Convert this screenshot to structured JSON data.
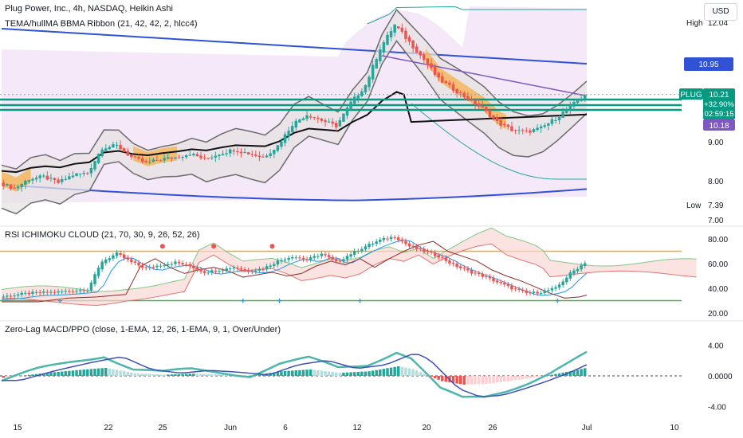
{
  "header": {
    "title": "Plug Power, Inc., 4h, NASDAQ, Heikin Ashi",
    "indicator1": "TEMA/hullMA BBMA Ribbon (21, 42, 42, 2, hlcc4)",
    "indicator2": "RSI ICHIMOKU CLOUD (21, 70, 30, 9, 26, 52, 26)",
    "indicator3": "Zero-Lag MACD/PPO (close, 1-EMA, 12, 26, 1-EMA, 9, 1, Over/Under)"
  },
  "currency_button": "USD",
  "price_axis": {
    "ticks": [
      "9.00",
      "8.00",
      "7.00"
    ],
    "high_label": "High",
    "high_value": "12.04",
    "low_label": "Low",
    "low_value": "7.39",
    "blue_band_value": "10.95",
    "ticker": "PLUG",
    "last_price": "10.21",
    "change": "+32.90%",
    "countdown": "02:59:15",
    "ma_value": "10.18"
  },
  "rsi_axis": {
    "ticks": [
      "80.00",
      "60.00",
      "40.00",
      "20.00"
    ]
  },
  "macd_axis": {
    "ticks": [
      "4.00",
      "0.0000",
      "-4.00"
    ]
  },
  "time_axis": {
    "labels": [
      "15",
      "22",
      "25",
      "Jun",
      "6",
      "12",
      "20",
      "26",
      "Jul",
      "10"
    ]
  },
  "colors": {
    "up": "#26a69a",
    "down": "#ef5350",
    "blue": "#3152d4",
    "teal": "#089981",
    "purple": "#7e57c2"
  },
  "chart_data": [
    {
      "type": "candlestick",
      "title": "Plug Power, Inc., 4h, NASDAQ, Heikin Ashi",
      "x_labels": [
        "15",
        "22",
        "25",
        "Jun",
        "6",
        "12",
        "20",
        "26",
        "Jul",
        "10"
      ],
      "y_ticks": [
        9.0,
        8.0,
        7.0
      ],
      "ylim": [
        6.9,
        12.4
      ],
      "close_path": [
        [
          0,
          7.95
        ],
        [
          4,
          7.8
        ],
        [
          8,
          8.05
        ],
        [
          12,
          8.1
        ],
        [
          16,
          7.95
        ],
        [
          20,
          8.15
        ],
        [
          24,
          8.2
        ],
        [
          28,
          8.85
        ],
        [
          32,
          8.9
        ],
        [
          36,
          8.6
        ],
        [
          40,
          8.45
        ],
        [
          44,
          8.55
        ],
        [
          48,
          8.6
        ],
        [
          52,
          8.7
        ],
        [
          56,
          8.55
        ],
        [
          60,
          8.7
        ],
        [
          64,
          8.8
        ],
        [
          68,
          8.7
        ],
        [
          72,
          8.6
        ],
        [
          76,
          8.9
        ],
        [
          80,
          9.45
        ],
        [
          84,
          9.7
        ],
        [
          88,
          9.55
        ],
        [
          92,
          9.4
        ],
        [
          96,
          10.0
        ],
        [
          100,
          10.45
        ],
        [
          104,
          11.4
        ],
        [
          108,
          12.0
        ],
        [
          112,
          11.55
        ],
        [
          116,
          11.1
        ],
        [
          120,
          10.6
        ],
        [
          124,
          10.35
        ],
        [
          128,
          10.1
        ],
        [
          132,
          9.85
        ],
        [
          136,
          9.5
        ],
        [
          140,
          9.3
        ],
        [
          144,
          9.25
        ],
        [
          148,
          9.35
        ],
        [
          152,
          9.6
        ],
        [
          156,
          9.9
        ],
        [
          160,
          10.21
        ]
      ],
      "high": 12.04,
      "low": 7.39,
      "last": 10.21,
      "change": "+32.90%"
    },
    {
      "type": "line",
      "title": "RSI ICHIMOKU CLOUD (21, 70, 30, 9, 26, 52, 26)",
      "y_ticks": [
        80,
        60,
        40,
        20
      ],
      "ylim": [
        17,
        86
      ],
      "overbought": 70,
      "oversold": 30,
      "rsi_path": [
        [
          0,
          33
        ],
        [
          8,
          36
        ],
        [
          16,
          37
        ],
        [
          24,
          39
        ],
        [
          28,
          62
        ],
        [
          32,
          68
        ],
        [
          36,
          61
        ],
        [
          40,
          56
        ],
        [
          44,
          59
        ],
        [
          48,
          61
        ],
        [
          52,
          58
        ],
        [
          56,
          53
        ],
        [
          60,
          55
        ],
        [
          64,
          57
        ],
        [
          68,
          54
        ],
        [
          72,
          56
        ],
        [
          76,
          62
        ],
        [
          80,
          66
        ],
        [
          84,
          63
        ],
        [
          88,
          68
        ],
        [
          92,
          61
        ],
        [
          96,
          68
        ],
        [
          100,
          74
        ],
        [
          104,
          79
        ],
        [
          108,
          82
        ],
        [
          112,
          74
        ],
        [
          116,
          70
        ],
        [
          120,
          66
        ],
        [
          124,
          59
        ],
        [
          128,
          54
        ],
        [
          132,
          50
        ],
        [
          136,
          45
        ],
        [
          140,
          40
        ],
        [
          144,
          36
        ],
        [
          148,
          37
        ],
        [
          152,
          40
        ],
        [
          156,
          52
        ],
        [
          160,
          61
        ]
      ]
    },
    {
      "type": "bar",
      "title": "Zero-Lag MACD/PPO (close, 1-EMA, 12, 26, 1-EMA, 9, 1, Over/Under)",
      "y_ticks": [
        4.0,
        0.0,
        -4.0
      ],
      "ylim": [
        -5.0,
        6.6
      ],
      "histogram_path": [
        [
          0,
          -0.25
        ],
        [
          10,
          0.3
        ],
        [
          20,
          0.75
        ],
        [
          28,
          1.05
        ],
        [
          36,
          0.35
        ],
        [
          44,
          0.15
        ],
        [
          52,
          0.3
        ],
        [
          60,
          0.2
        ],
        [
          68,
          0.05
        ],
        [
          76,
          0.6
        ],
        [
          84,
          0.85
        ],
        [
          92,
          0.4
        ],
        [
          100,
          0.6
        ],
        [
          108,
          1.25
        ],
        [
          112,
          0.9
        ],
        [
          116,
          0.1
        ],
        [
          120,
          -0.7
        ],
        [
          126,
          -1.15
        ],
        [
          132,
          -1.05
        ],
        [
          138,
          -0.7
        ],
        [
          144,
          -0.3
        ],
        [
          150,
          0.15
        ],
        [
          156,
          0.7
        ],
        [
          160,
          1.1
        ]
      ]
    }
  ]
}
